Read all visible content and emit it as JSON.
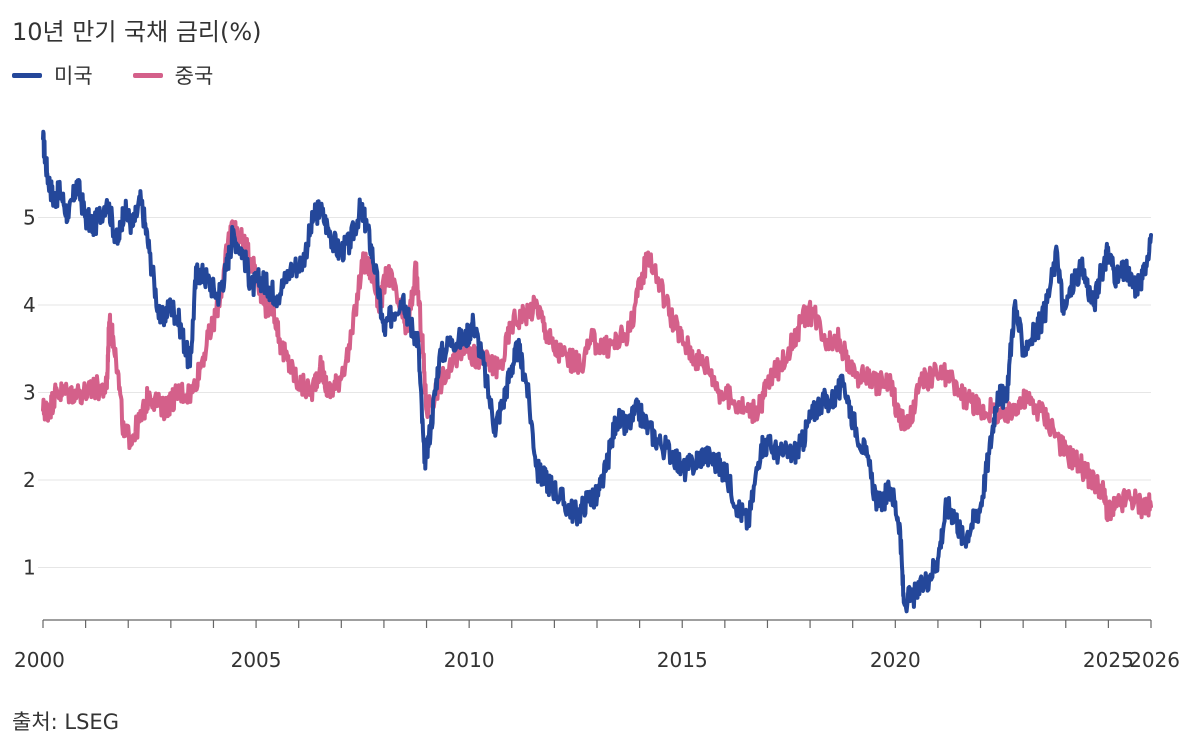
{
  "title": "10년 만기 국채 금리(%)",
  "source": "출처: LSEG",
  "legend": [
    {
      "label": "미국",
      "color": "#24479a"
    },
    {
      "label": "중국",
      "color": "#d4608a"
    }
  ],
  "chart_data": {
    "type": "line",
    "title": "10년 만기 국채 금리(%)",
    "xlabel": "",
    "ylabel": "",
    "xlim": [
      2000,
      2026
    ],
    "ylim": [
      0.4,
      6.0
    ],
    "x_ticks": [
      {
        "value": 2000,
        "label": "2000"
      },
      {
        "value": 2005,
        "label": "2005"
      },
      {
        "value": 2010,
        "label": "2010"
      },
      {
        "value": 2015,
        "label": "2015"
      },
      {
        "value": 2020,
        "label": "2020"
      },
      {
        "value": 2025,
        "label": "2025"
      },
      {
        "value": 2026,
        "label": "2026"
      }
    ],
    "y_ticks": [
      {
        "value": 1,
        "label": "1"
      },
      {
        "value": 2,
        "label": "2"
      },
      {
        "value": 3,
        "label": "3"
      },
      {
        "value": 4,
        "label": "4"
      },
      {
        "value": 5,
        "label": "5"
      }
    ],
    "grid": true,
    "legend_position": "top-left",
    "series": [
      {
        "name": "미국",
        "color": "#24479a",
        "x": [
          2000.0,
          2000.1,
          2000.25,
          2000.4,
          2000.6,
          2000.8,
          2001.0,
          2001.2,
          2001.5,
          2001.75,
          2001.9,
          2002.1,
          2002.3,
          2002.5,
          2002.75,
          2003.0,
          2003.2,
          2003.45,
          2003.6,
          2003.85,
          2004.1,
          2004.3,
          2004.45,
          2004.7,
          2004.9,
          2005.1,
          2005.3,
          2005.5,
          2005.8,
          2006.1,
          2006.35,
          2006.5,
          2006.75,
          2006.95,
          2007.2,
          2007.45,
          2007.6,
          2007.8,
          2008.0,
          2008.2,
          2008.45,
          2008.6,
          2008.8,
          2008.95,
          2009.1,
          2009.3,
          2009.6,
          2009.9,
          2010.1,
          2010.3,
          2010.6,
          2010.8,
          2011.0,
          2011.15,
          2011.35,
          2011.6,
          2011.8,
          2012.0,
          2012.3,
          2012.55,
          2012.8,
          2013.0,
          2013.2,
          2013.45,
          2013.7,
          2013.95,
          2014.2,
          2014.5,
          2014.8,
          2015.0,
          2015.3,
          2015.5,
          2015.8,
          2016.0,
          2016.3,
          2016.55,
          2016.85,
          2017.0,
          2017.3,
          2017.6,
          2017.8,
          2018.0,
          2018.25,
          2018.5,
          2018.8,
          2019.0,
          2019.3,
          2019.6,
          2019.9,
          2020.1,
          2020.2,
          2020.5,
          2020.8,
          2021.0,
          2021.2,
          2021.4,
          2021.6,
          2021.8,
          2022.0,
          2022.2,
          2022.4,
          2022.6,
          2022.8,
          2023.0,
          2023.3,
          2023.5,
          2023.8,
          2023.95,
          2024.2,
          2024.4,
          2024.65,
          2024.9,
          2025.0,
          2025.2,
          2025.4,
          2025.6,
          2025.8,
          2026.0
        ],
        "values": [
          5.9,
          5.5,
          5.2,
          5.3,
          5.0,
          5.4,
          5.0,
          4.9,
          5.2,
          4.7,
          5.1,
          4.9,
          5.2,
          4.6,
          3.8,
          4.0,
          3.8,
          3.3,
          4.4,
          4.3,
          4.1,
          4.4,
          4.8,
          4.6,
          4.2,
          4.3,
          4.2,
          4.1,
          4.4,
          4.5,
          5.0,
          5.1,
          4.8,
          4.6,
          4.7,
          5.1,
          4.9,
          4.4,
          3.7,
          3.9,
          4.1,
          3.8,
          3.6,
          2.2,
          2.6,
          3.4,
          3.6,
          3.6,
          3.8,
          3.4,
          2.6,
          2.9,
          3.3,
          3.5,
          3.1,
          2.1,
          2.0,
          1.9,
          1.7,
          1.6,
          1.8,
          1.8,
          2.1,
          2.7,
          2.6,
          2.8,
          2.6,
          2.4,
          2.3,
          2.1,
          2.2,
          2.3,
          2.2,
          2.1,
          1.7,
          1.5,
          2.4,
          2.4,
          2.3,
          2.3,
          2.4,
          2.7,
          2.9,
          2.9,
          3.1,
          2.7,
          2.3,
          1.7,
          1.9,
          1.5,
          0.6,
          0.7,
          0.9,
          1.1,
          1.7,
          1.6,
          1.3,
          1.5,
          1.7,
          2.3,
          3.0,
          2.9,
          4.0,
          3.5,
          3.7,
          3.9,
          4.6,
          3.9,
          4.3,
          4.4,
          4.0,
          4.5,
          4.6,
          4.3,
          4.4,
          4.2,
          4.3,
          4.8
        ],
        "stroke_width": 4
      },
      {
        "name": "중국",
        "color": "#d4608a",
        "x": [
          2000.0,
          2000.15,
          2000.3,
          2000.5,
          2000.8,
          2001.1,
          2001.2,
          2001.5,
          2001.55,
          2001.7,
          2001.9,
          2002.1,
          2002.3,
          2002.5,
          2002.8,
          2003.0,
          2003.2,
          2003.5,
          2003.75,
          2004.0,
          2004.2,
          2004.4,
          2004.6,
          2004.8,
          2005.0,
          2005.2,
          2005.4,
          2005.6,
          2005.8,
          2006.0,
          2006.3,
          2006.5,
          2006.7,
          2006.9,
          2007.2,
          2007.5,
          2007.7,
          2007.9,
          2008.1,
          2008.35,
          2008.55,
          2008.75,
          2008.9,
          2009.0,
          2009.3,
          2009.6,
          2009.9,
          2010.1,
          2010.3,
          2010.5,
          2010.75,
          2011.0,
          2011.3,
          2011.6,
          2011.8,
          2012.0,
          2012.3,
          2012.6,
          2012.9,
          2013.2,
          2013.5,
          2013.75,
          2013.95,
          2014.2,
          2014.5,
          2014.8,
          2015.0,
          2015.3,
          2015.6,
          2015.9,
          2016.2,
          2016.5,
          2016.8,
          2017.0,
          2017.3,
          2017.6,
          2017.9,
          2018.1,
          2018.4,
          2018.7,
          2019.0,
          2019.3,
          2019.6,
          2019.9,
          2020.1,
          2020.3,
          2020.6,
          2020.9,
          2021.2,
          2021.5,
          2021.8,
          2022.0,
          2022.3,
          2022.6,
          2022.9,
          2023.1,
          2023.4,
          2023.7,
          2024.0,
          2024.3,
          2024.6,
          2024.85,
          2025.0,
          2025.2,
          2025.5,
          2025.8,
          2026.0
        ],
        "values": [
          2.8,
          2.8,
          3.0,
          3.0,
          3.0,
          3.0,
          3.05,
          3.05,
          3.8,
          3.5,
          2.5,
          2.5,
          2.7,
          3.0,
          2.8,
          2.9,
          3.0,
          3.0,
          3.4,
          3.8,
          4.2,
          4.9,
          4.8,
          4.6,
          4.4,
          4.0,
          4.0,
          3.5,
          3.3,
          3.1,
          3.0,
          3.3,
          3.0,
          3.1,
          3.5,
          4.5,
          4.4,
          4.0,
          4.4,
          4.0,
          3.7,
          4.4,
          3.6,
          2.8,
          3.1,
          3.3,
          3.6,
          3.4,
          3.4,
          3.3,
          3.3,
          3.8,
          3.9,
          4.0,
          3.7,
          3.5,
          3.4,
          3.3,
          3.6,
          3.5,
          3.6,
          3.7,
          4.1,
          4.6,
          4.2,
          3.8,
          3.6,
          3.4,
          3.3,
          3.0,
          2.9,
          2.8,
          2.8,
          3.1,
          3.3,
          3.6,
          3.9,
          3.9,
          3.6,
          3.6,
          3.2,
          3.2,
          3.1,
          3.1,
          2.7,
          2.6,
          3.1,
          3.2,
          3.2,
          3.0,
          2.9,
          2.8,
          2.8,
          2.7,
          2.9,
          2.9,
          2.8,
          2.6,
          2.3,
          2.2,
          2.0,
          1.9,
          1.6,
          1.7,
          1.8,
          1.7,
          1.7
        ],
        "stroke_width": 4
      }
    ]
  }
}
